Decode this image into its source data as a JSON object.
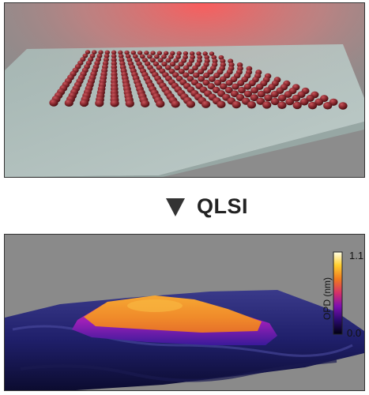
{
  "arrow_label": "QLSI",
  "colorbar": {
    "title": "OPD (nm)",
    "max_label": "1.1",
    "min_label": "0.0",
    "colors": [
      "#000010",
      "#2a0a6e",
      "#7d10b0",
      "#d4306a",
      "#f07a20",
      "#ffcf30",
      "#ffffe8"
    ]
  },
  "illumination_color": "#ff5a5a",
  "particle_color": "#7a1f24",
  "glass_color": "#b6cac6",
  "background_gray": "#8a8a8a"
}
